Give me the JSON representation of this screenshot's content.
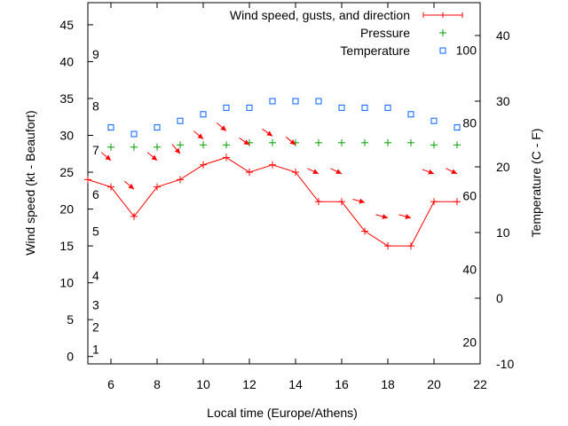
{
  "chart_data": {
    "type": "line",
    "xlabel": "Local time (Europe/Athens)",
    "ylabel": "Wind speed (kt - Beaufort)",
    "y2label": "Temperature (C - F)",
    "xlim": [
      5,
      22
    ],
    "ylim": [
      -1,
      48
    ],
    "y2lim": [
      -10,
      45
    ],
    "xticks": [
      6,
      8,
      10,
      12,
      14,
      16,
      18,
      20,
      22
    ],
    "yticks": [
      0,
      5,
      10,
      15,
      20,
      25,
      30,
      35,
      40,
      45
    ],
    "y2ticks": [
      -10,
      0,
      10,
      20,
      30,
      40
    ],
    "beaufort_labels": [
      {
        "label": "1",
        "value": 1
      },
      {
        "label": "2",
        "value": 4
      },
      {
        "label": "3",
        "value": 7
      },
      {
        "label": "4",
        "value": 11
      },
      {
        "label": "5",
        "value": 17
      },
      {
        "label": "6",
        "value": 22
      },
      {
        "label": "7",
        "value": 28
      },
      {
        "label": "8",
        "value": 34
      },
      {
        "label": "9",
        "value": 41
      }
    ],
    "fahrenheit_labels": [
      {
        "label": "20",
        "value": -6.7
      },
      {
        "label": "40",
        "value": 4.4
      },
      {
        "label": "60",
        "value": 15.6
      },
      {
        "label": "80",
        "value": 26.7
      },
      {
        "label": "100",
        "value": 37.8
      }
    ],
    "legend": [
      "Wind speed, gusts, and direction",
      "Pressure",
      "Temperature"
    ],
    "legend_position": "top-right",
    "colors": {
      "wind": "#ff0000",
      "pressure": "#00a000",
      "temperature": "#0060ff"
    },
    "wind": {
      "x": [
        5,
        6,
        7,
        8,
        9,
        10,
        11,
        12,
        13,
        14,
        15,
        16,
        17,
        18,
        19,
        20,
        21
      ],
      "y": [
        24,
        23,
        19,
        23,
        24,
        26,
        27,
        25,
        26,
        25,
        21,
        21,
        17,
        15,
        15,
        21,
        21
      ]
    },
    "gusts": {
      "x": [
        6,
        7,
        8,
        9,
        10,
        11,
        12,
        13,
        14,
        15,
        16,
        17,
        18,
        19,
        20,
        21
      ],
      "y": [
        26.6,
        22.7,
        26.6,
        27.5,
        29.5,
        30.6,
        28.7,
        29.9,
        28.7,
        24.8,
        24.8,
        20.9,
        18.8,
        18.8,
        24.8,
        24.8
      ],
      "arrow_angle_deg": [
        40,
        40,
        40,
        50,
        40,
        40,
        35,
        35,
        40,
        25,
        25,
        15,
        15,
        15,
        20,
        25
      ]
    },
    "pressure": {
      "x": [
        6,
        7,
        8,
        9,
        10,
        11,
        12,
        13,
        14,
        15,
        16,
        17,
        18,
        19,
        20,
        21
      ],
      "y": [
        28.4,
        28.4,
        28.4,
        28.7,
        28.7,
        28.7,
        29,
        29,
        29,
        29,
        29,
        29,
        29,
        29,
        28.7,
        28.7
      ]
    },
    "temperature": {
      "x": [
        6,
        7,
        8,
        9,
        10,
        11,
        12,
        13,
        14,
        15,
        16,
        17,
        18,
        19,
        20,
        21
      ],
      "y": [
        26,
        25,
        26,
        27,
        28,
        29,
        29,
        30,
        30,
        30,
        29,
        29,
        29,
        28,
        27,
        26
      ]
    }
  }
}
